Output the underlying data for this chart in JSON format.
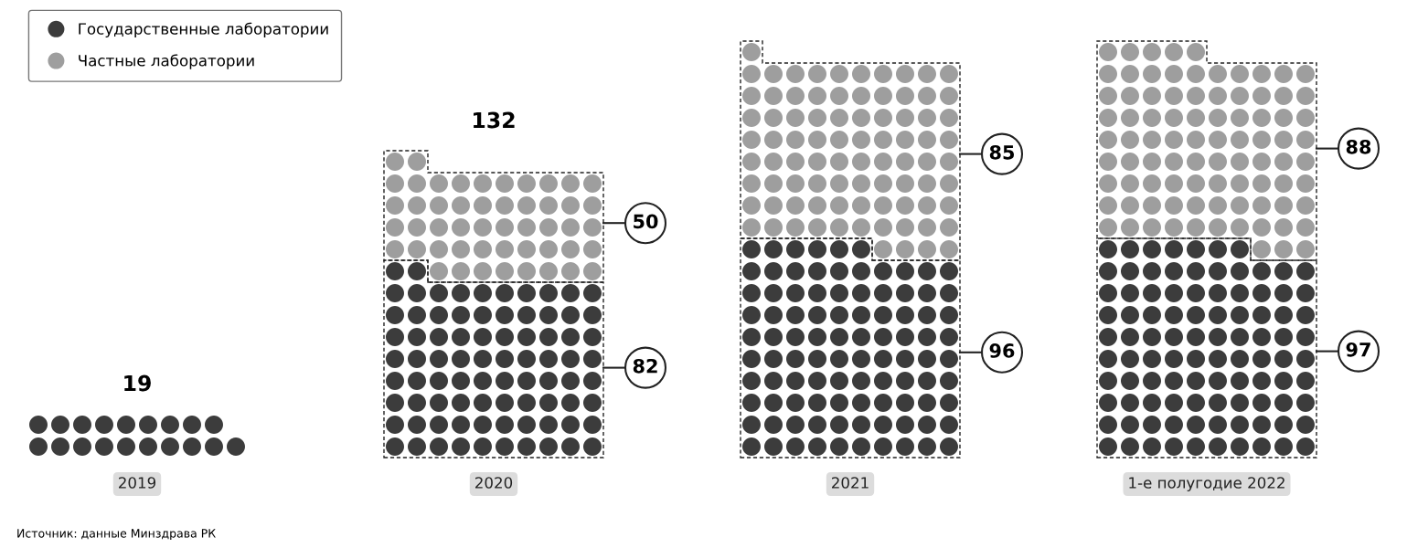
{
  "chart_data": {
    "type": "other",
    "categories": [
      "2019",
      "2020",
      "2021",
      "1-е полугодие 2022"
    ],
    "series": [
      {
        "name": "Государственные лаборатории",
        "color": "#3c3c3c",
        "values": [
          19,
          82,
          96,
          97
        ],
        "value_labels": [
          "19",
          "82",
          "96",
          "97"
        ]
      },
      {
        "name": "Частные лаборатории",
        "color": "#9e9e9e",
        "values": [
          null,
          50,
          85,
          88
        ],
        "value_labels": [
          null,
          "50",
          "85",
          "88"
        ]
      }
    ],
    "totals": [
      null,
      "132",
      null,
      null
    ],
    "legend": "top left",
    "annotations": [
      "Источник: данные Минздрава РК"
    ]
  }
}
